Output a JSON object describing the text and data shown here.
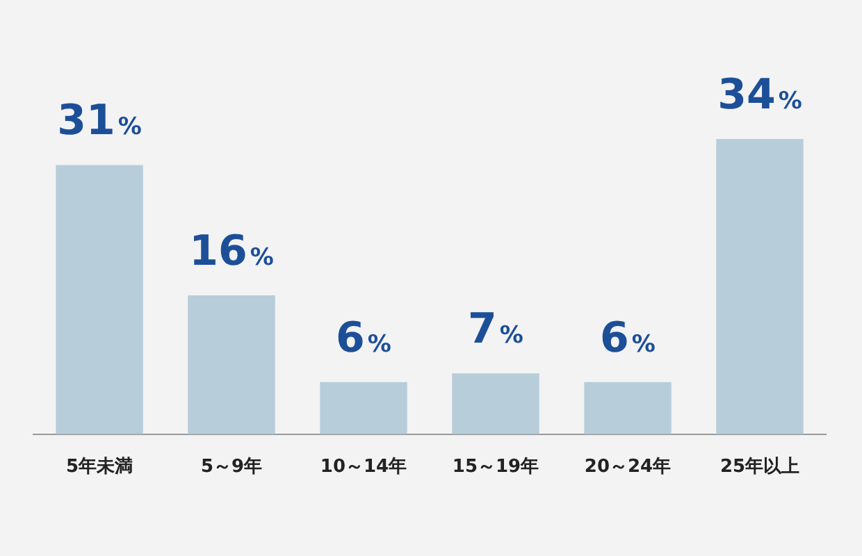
{
  "chart_data": {
    "type": "bar",
    "categories": [
      "5年未満",
      "5～9年",
      "10～14年",
      "15～19年",
      "20～24年",
      "25年以上"
    ],
    "values": [
      31,
      16,
      6,
      7,
      6,
      34
    ],
    "color": "#b7cdda",
    "value_labels": [
      "31%",
      "16%",
      "6%",
      "7%",
      "6%",
      "34%"
    ],
    "grid": false,
    "legend": false
  }
}
